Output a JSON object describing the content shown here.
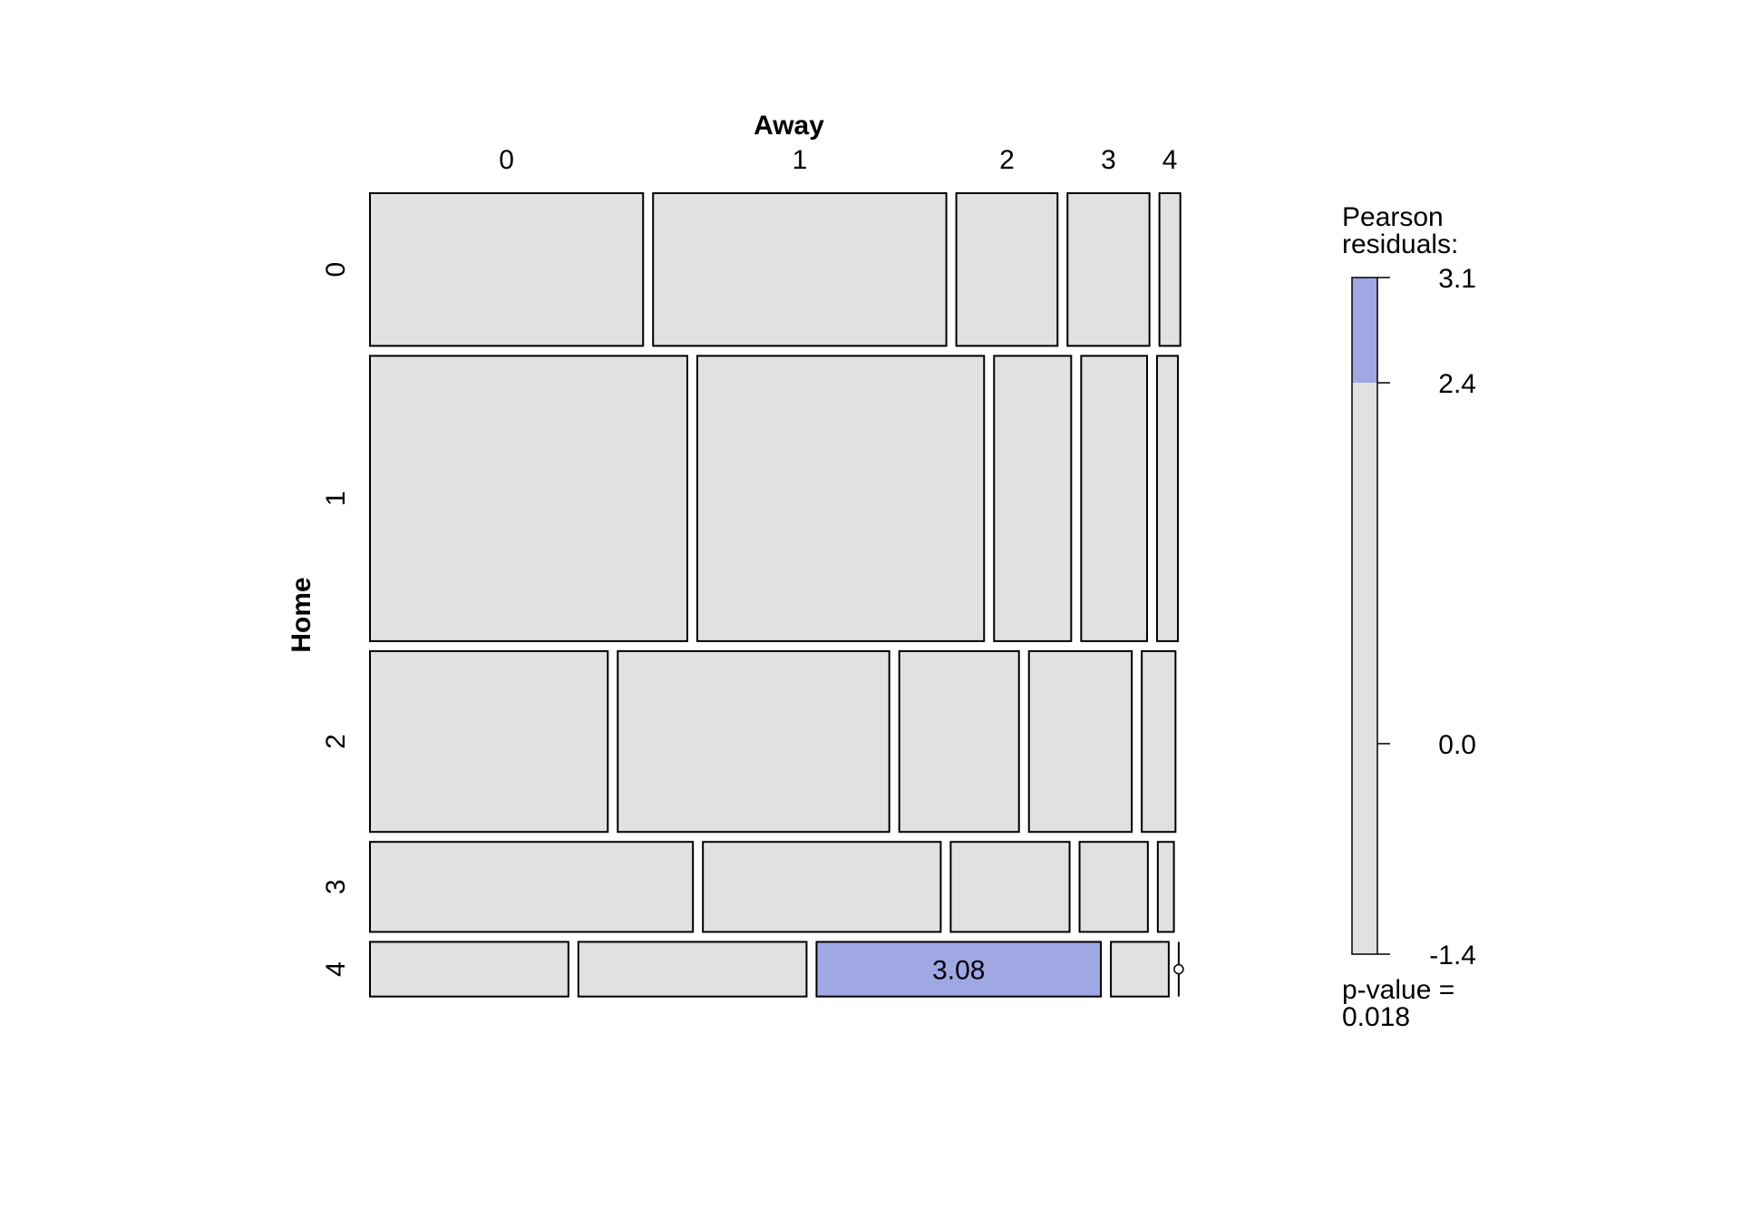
{
  "chart_data": {
    "type": "mosaic",
    "xlabel": "Away",
    "ylabel": "Home",
    "x_levels": [
      "0",
      "1",
      "2",
      "3",
      "4"
    ],
    "y_levels": [
      "0",
      "1",
      "2",
      "3",
      "4"
    ],
    "row_proportions": [
      0.19,
      0.355,
      0.225,
      0.112,
      0.068
    ],
    "cell_proportions": [
      [
        0.34,
        0.365,
        0.126,
        0.102,
        0.026
      ],
      [
        0.395,
        0.357,
        0.096,
        0.082,
        0.026
      ],
      [
        0.296,
        0.338,
        0.149,
        0.128,
        0.042
      ],
      [
        0.402,
        0.296,
        0.148,
        0.085,
        0.02
      ],
      [
        0.247,
        0.284,
        0.354,
        0.072,
        0.0
      ]
    ],
    "cell_labels": [
      [
        "",
        "",
        "",
        "",
        ""
      ],
      [
        "",
        "",
        "",
        "",
        ""
      ],
      [
        "",
        "",
        "",
        "",
        ""
      ],
      [
        "",
        "",
        "",
        "",
        ""
      ],
      [
        "",
        "",
        "3.08",
        "",
        ""
      ]
    ],
    "highlight_cells": [
      [
        4,
        2
      ]
    ],
    "colors": {
      "neutral": "#e1e1e1",
      "positive": "#9fa8e3",
      "border": "#000000"
    },
    "legend": {
      "title_line1": "Pearson",
      "title_line2": "residuals:",
      "ticks": [
        {
          "value": 3.1,
          "label": "3.1"
        },
        {
          "value": 2.4,
          "label": "2.4"
        },
        {
          "value": 0.0,
          "label": "0.0"
        },
        {
          "value": -1.4,
          "label": "-1.4"
        }
      ],
      "range": [
        -1.4,
        3.1
      ],
      "shade_threshold": 2.4,
      "pvalue_line1": "p-value =",
      "pvalue_line2": "0.018"
    }
  }
}
